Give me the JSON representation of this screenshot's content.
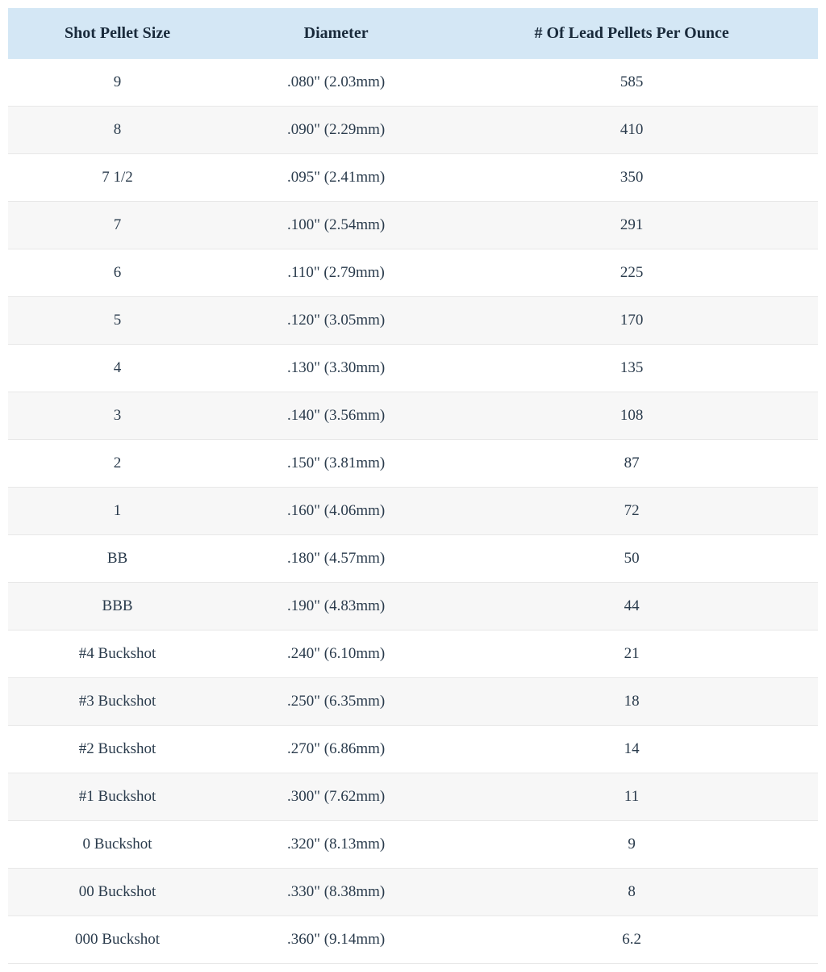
{
  "table": {
    "columns": [
      "Shot Pellet Size",
      "Diameter",
      "# Of Lead Pellets Per Ounce"
    ],
    "rows": [
      {
        "size": "9",
        "diameter": ".080\" (2.03mm)",
        "count": "585"
      },
      {
        "size": "8",
        "diameter": ".090\" (2.29mm)",
        "count": "410"
      },
      {
        "size": "7 1/2",
        "diameter": ".095\" (2.41mm)",
        "count": "350"
      },
      {
        "size": "7",
        "diameter": ".100\" (2.54mm)",
        "count": "291"
      },
      {
        "size": "6",
        "diameter": ".110\" (2.79mm)",
        "count": "225"
      },
      {
        "size": "5",
        "diameter": ".120\" (3.05mm)",
        "count": "170"
      },
      {
        "size": "4",
        "diameter": ".130\" (3.30mm)",
        "count": "135"
      },
      {
        "size": "3",
        "diameter": ".140\" (3.56mm)",
        "count": "108"
      },
      {
        "size": "2",
        "diameter": ".150\" (3.81mm)",
        "count": "87"
      },
      {
        "size": "1",
        "diameter": ".160\" (4.06mm)",
        "count": "72"
      },
      {
        "size": "BB",
        "diameter": ".180\" (4.57mm)",
        "count": "50"
      },
      {
        "size": "BBB",
        "diameter": ".190\" (4.83mm)",
        "count": "44"
      },
      {
        "size": "#4 Buckshot",
        "diameter": ".240\" (6.10mm)",
        "count": "21"
      },
      {
        "size": "#3 Buckshot",
        "diameter": ".250\" (6.35mm)",
        "count": "18"
      },
      {
        "size": "#2 Buckshot",
        "diameter": ".270\" (6.86mm)",
        "count": "14"
      },
      {
        "size": "#1 Buckshot",
        "diameter": ".300\" (7.62mm)",
        "count": "11"
      },
      {
        "size": "0 Buckshot",
        "diameter": ".320\" (8.13mm)",
        "count": "9"
      },
      {
        "size": "00 Buckshot",
        "diameter": ".330\" (8.38mm)",
        "count": "8"
      },
      {
        "size": "000 Buckshot",
        "diameter": ".360\" (9.14mm)",
        "count": "6.2"
      }
    ],
    "header_bg_color": "#d4e7f5",
    "row_even_bg_color": "#f7f7f7",
    "row_odd_bg_color": "#ffffff",
    "border_color": "#e8e8e8",
    "header_font_size": 20,
    "cell_font_size": 19,
    "text_color": "#2a3b4c",
    "header_text_color": "#1a2b3c",
    "column_widths": [
      "27%",
      "27%",
      "46%"
    ]
  }
}
